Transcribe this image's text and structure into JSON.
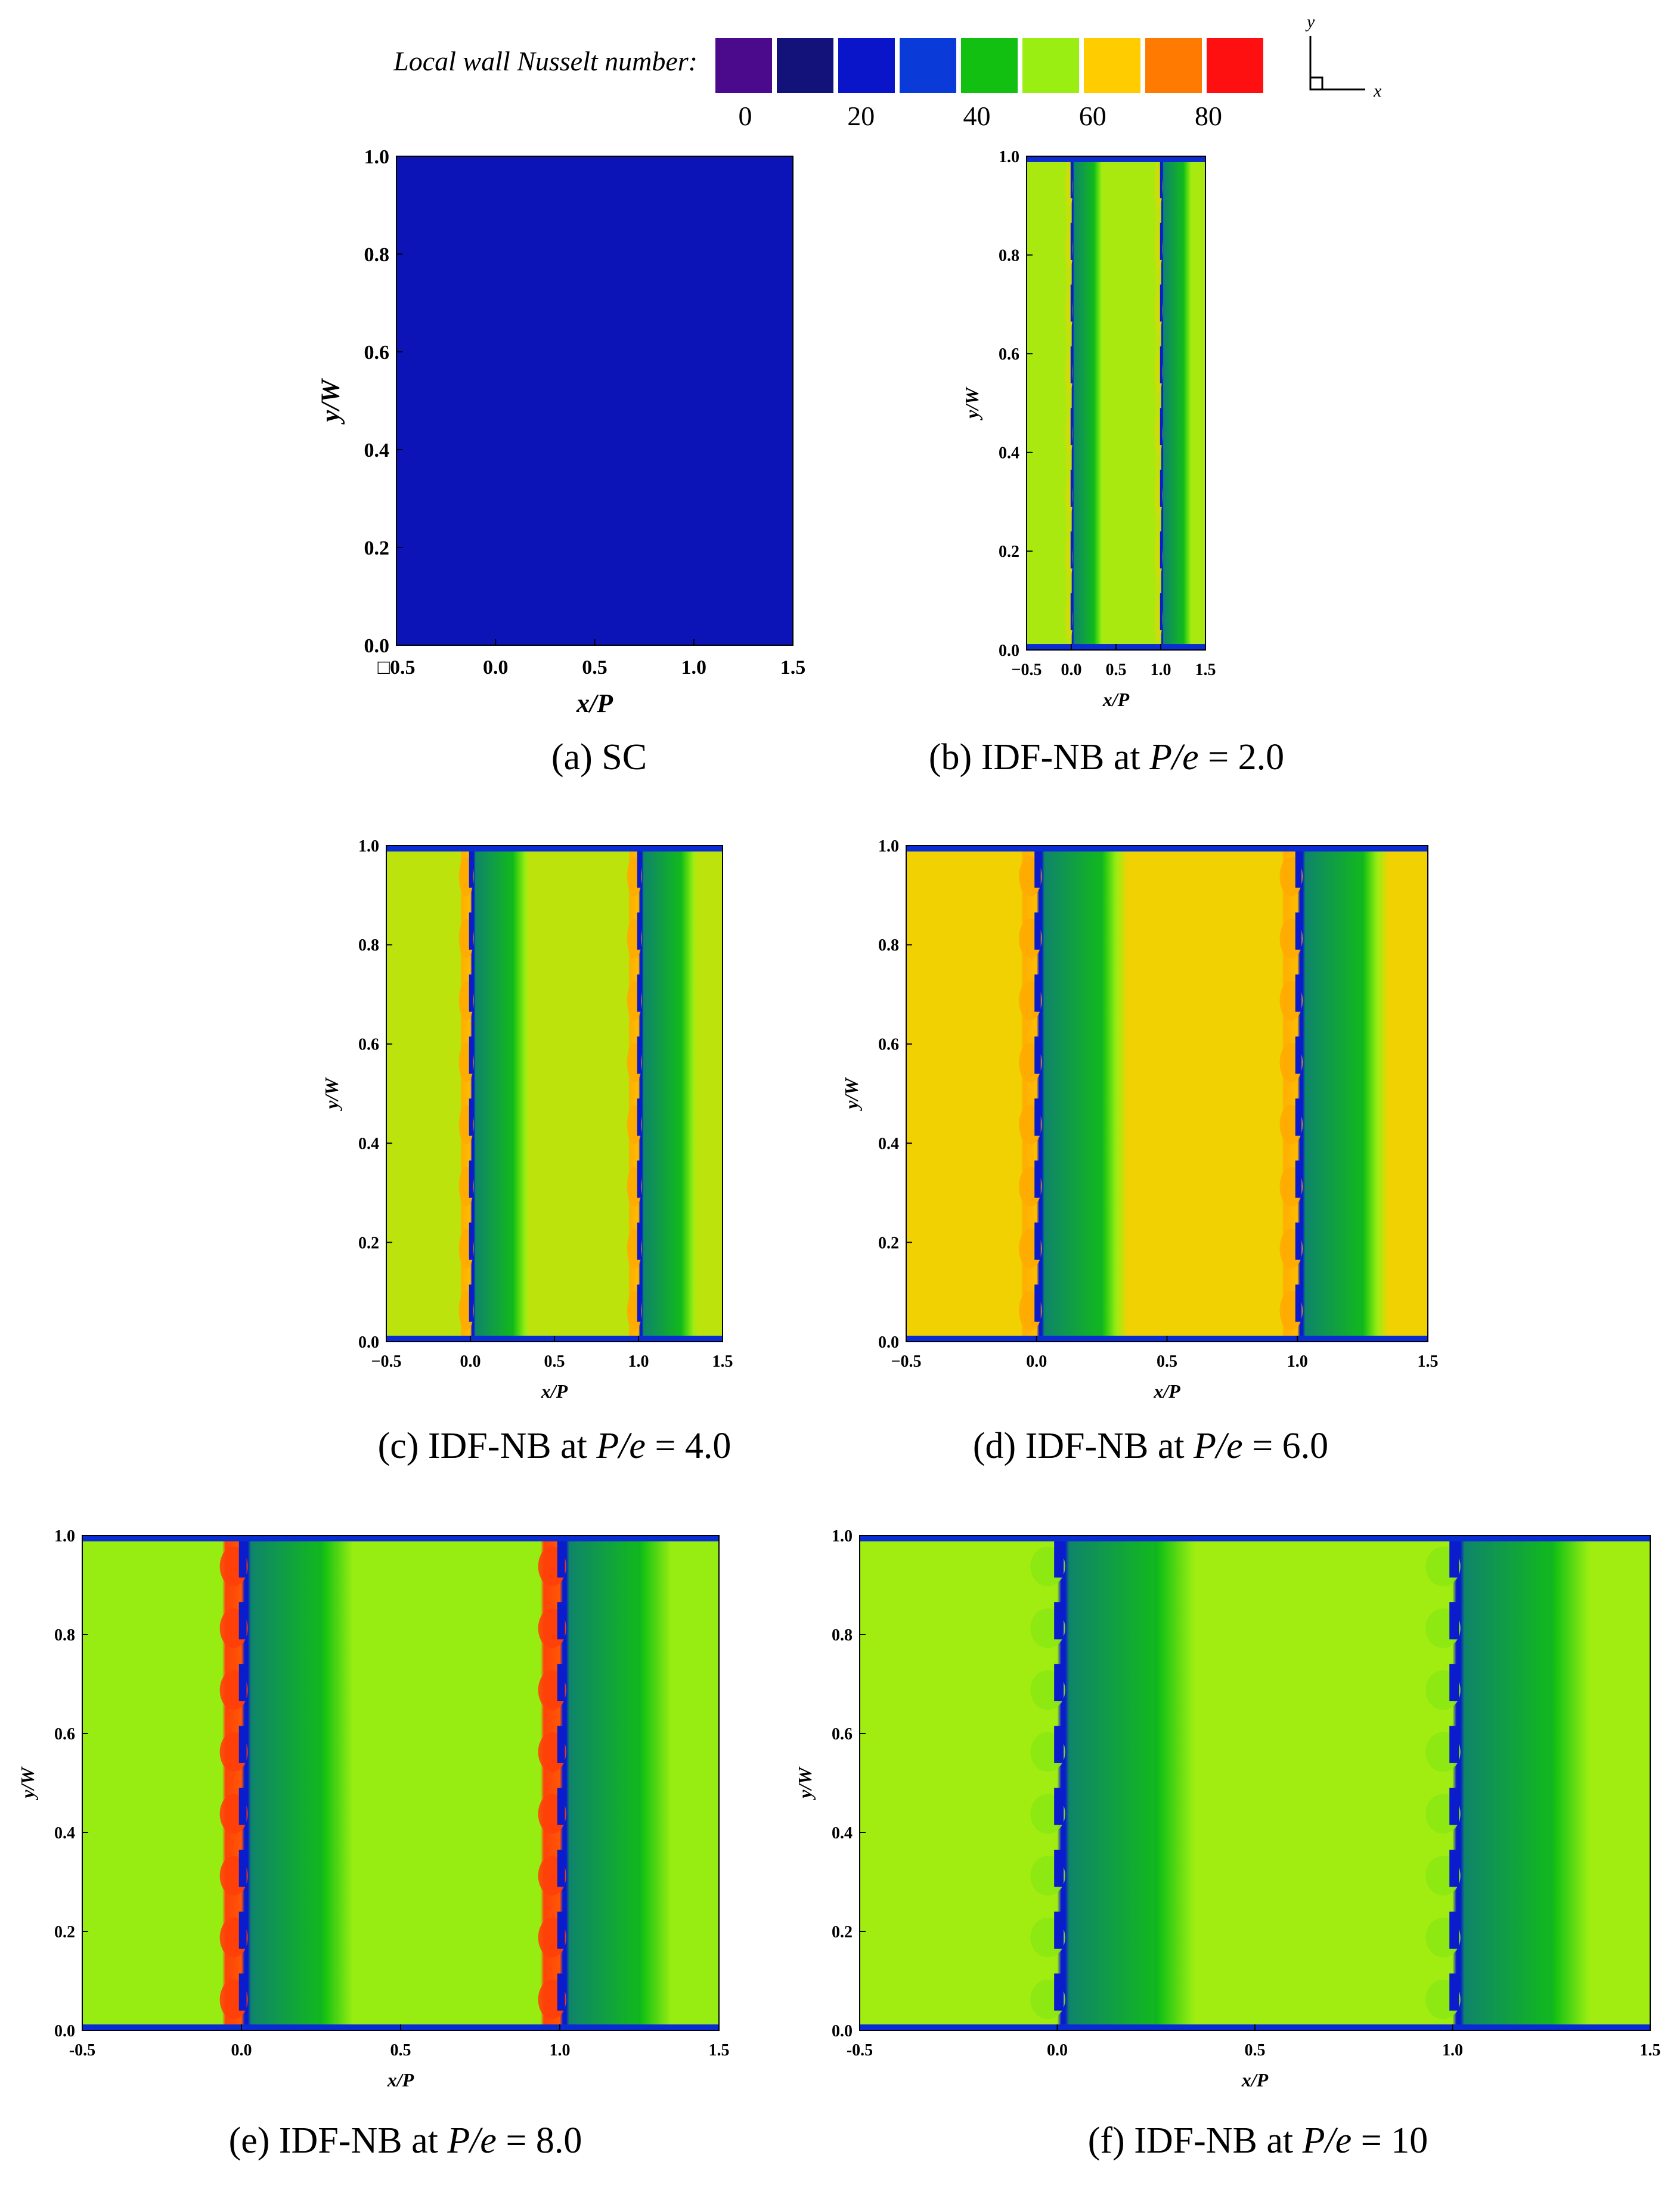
{
  "colorbar": {
    "title": "Local wall Nusselt number:",
    "colors": [
      "#4b0a8c",
      "#12127a",
      "#0a14c8",
      "#0a3ad8",
      "#12c012",
      "#9aee12",
      "#ffcc00",
      "#ff7a00",
      "#ff1010"
    ],
    "tick_labels": [
      "0",
      "20",
      "40",
      "60",
      "80"
    ],
    "axis_y": "y",
    "axis_x": "x"
  },
  "chart_data": [
    {
      "type": "heatmap",
      "caption": "(a) SC",
      "xlabel": "x/P",
      "ylabel": "y/W",
      "xlim": [
        -0.5,
        1.5
      ],
      "ylim": [
        0.0,
        1.0
      ],
      "x_ticks": [
        -0.5,
        0.0,
        0.5,
        1.0,
        1.5
      ],
      "x_tick_labels": [
        "□0.5",
        "0.0",
        "0.5",
        "1.0",
        "1.5"
      ],
      "y_ticks": [
        0.0,
        0.2,
        0.4,
        0.6,
        0.8,
        1.0
      ],
      "y_tick_labels": [
        "0.0",
        "0.2",
        "0.4",
        "0.6",
        "0.8",
        "1.0"
      ],
      "uniform_nu": 20,
      "rib_x": [],
      "peak_nu": 20,
      "base_nu": 20,
      "rib_low_nu": 20
    },
    {
      "type": "heatmap",
      "caption_prefix": "(b) IDF-NB at ",
      "caption_var": "P/e",
      "caption_suffix": " = 2.0",
      "xlabel": "x/P",
      "ylabel": "y/W",
      "xlim": [
        -0.5,
        1.5
      ],
      "ylim": [
        0.0,
        1.0
      ],
      "x_ticks": [
        -0.5,
        0.0,
        0.5,
        1.0,
        1.5
      ],
      "x_tick_labels": [
        "−0.5",
        "0.0",
        "0.5",
        "1.0",
        "1.5"
      ],
      "y_ticks": [
        0.0,
        0.2,
        0.4,
        0.6,
        0.8,
        1.0
      ],
      "y_tick_labels": [
        "0.0",
        "0.2",
        "0.4",
        "0.6",
        "0.8",
        "1.0"
      ],
      "rib_x": [
        0.0,
        1.0
      ],
      "peak_nu": 62,
      "base_nu": 58,
      "rib_low_nu": 25
    },
    {
      "type": "heatmap",
      "caption_prefix": "(c) IDF-NB at ",
      "caption_var": "P/e",
      "caption_suffix": " = 4.0",
      "xlabel": "x/P",
      "ylabel": "y/W",
      "xlim": [
        -0.5,
        1.5
      ],
      "ylim": [
        0.0,
        1.0
      ],
      "x_ticks": [
        -0.5,
        0.0,
        0.5,
        1.0,
        1.5
      ],
      "x_tick_labels": [
        "−0.5",
        "0.0",
        "0.5",
        "1.0",
        "1.5"
      ],
      "y_ticks": [
        0.0,
        0.2,
        0.4,
        0.6,
        0.8,
        1.0
      ],
      "y_tick_labels": [
        "0.0",
        "0.2",
        "0.4",
        "0.6",
        "0.8",
        "1.0"
      ],
      "rib_x": [
        0.0,
        1.0
      ],
      "peak_nu": 72,
      "base_nu": 60,
      "rib_low_nu": 25
    },
    {
      "type": "heatmap",
      "caption_prefix": "(d) IDF-NB at ",
      "caption_var": "P/e",
      "caption_suffix": " = 6.0",
      "xlabel": "x/P",
      "ylabel": "y/W",
      "xlim": [
        -0.5,
        1.5
      ],
      "ylim": [
        0.0,
        1.0
      ],
      "x_ticks": [
        -0.5,
        0.0,
        0.5,
        1.0,
        1.5
      ],
      "x_tick_labels": [
        "−0.5",
        "0.0",
        "0.5",
        "1.0",
        "1.5"
      ],
      "y_ticks": [
        0.0,
        0.2,
        0.4,
        0.6,
        0.8,
        1.0
      ],
      "y_tick_labels": [
        "0.0",
        "0.2",
        "0.4",
        "0.6",
        "0.8",
        "1.0"
      ],
      "rib_x": [
        0.0,
        1.0
      ],
      "peak_nu": 72,
      "base_nu": 66,
      "rib_low_nu": 25
    },
    {
      "type": "heatmap",
      "caption_prefix": "(e) IDF-NB at ",
      "caption_var": "P/e",
      "caption_suffix": " = 8.0",
      "xlabel": "x/P",
      "ylabel": "y/W",
      "xlim": [
        -0.5,
        1.5
      ],
      "ylim": [
        0.0,
        1.0
      ],
      "x_ticks": [
        -0.5,
        0.0,
        0.5,
        1.0,
        1.5
      ],
      "x_tick_labels": [
        "-0.5",
        "0.0",
        "0.5",
        "1.0",
        "1.5"
      ],
      "y_ticks": [
        0.0,
        0.2,
        0.4,
        0.6,
        0.8,
        1.0
      ],
      "y_tick_labels": [
        "0.0",
        "0.2",
        "0.4",
        "0.6",
        "0.8",
        "1.0"
      ],
      "rib_x": [
        0.0,
        1.0
      ],
      "peak_nu": 85,
      "base_nu": 56,
      "rib_low_nu": 25
    },
    {
      "type": "heatmap",
      "caption_prefix": "(f) IDF-NB at ",
      "caption_var": "P/e",
      "caption_suffix": " = 10",
      "xlabel": "x/P",
      "ylabel": "y/W",
      "xlim": [
        -0.5,
        1.5
      ],
      "ylim": [
        0.0,
        1.0
      ],
      "x_ticks": [
        -0.5,
        0.0,
        0.5,
        1.0,
        1.5
      ],
      "x_tick_labels": [
        "-0.5",
        "0.0",
        "0.5",
        "1.0",
        "1.5"
      ],
      "y_ticks": [
        0.0,
        0.2,
        0.4,
        0.6,
        0.8,
        1.0
      ],
      "y_tick_labels": [
        "0.0",
        "0.2",
        "0.4",
        "0.6",
        "0.8",
        "1.0"
      ],
      "rib_x": [
        0.0,
        1.0
      ],
      "peak_nu": 55,
      "base_nu": 57,
      "rib_low_nu": 25
    }
  ]
}
